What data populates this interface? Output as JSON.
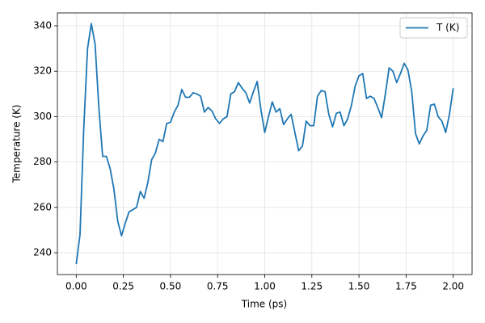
{
  "chart_data": {
    "type": "line",
    "x_label": "Time (ps)",
    "y_label": "Temperature (K)",
    "x": [
      0.0,
      0.02,
      0.04,
      0.06,
      0.08,
      0.1,
      0.12,
      0.14,
      0.16,
      0.18,
      0.2,
      0.22,
      0.24,
      0.26,
      0.28,
      0.3,
      0.32,
      0.34,
      0.36,
      0.38,
      0.4,
      0.42,
      0.44,
      0.46,
      0.48,
      0.5,
      0.52,
      0.54,
      0.56,
      0.58,
      0.6,
      0.62,
      0.64,
      0.66,
      0.68,
      0.7,
      0.72,
      0.74,
      0.76,
      0.78,
      0.8,
      0.82,
      0.84,
      0.86,
      0.88,
      0.9,
      0.92,
      0.94,
      0.96,
      0.98,
      1.0,
      1.02,
      1.04,
      1.06,
      1.08,
      1.1,
      1.12,
      1.14,
      1.16,
      1.18,
      1.2,
      1.22,
      1.24,
      1.26,
      1.28,
      1.3,
      1.32,
      1.34,
      1.36,
      1.38,
      1.4,
      1.42,
      1.44,
      1.46,
      1.48,
      1.5,
      1.52,
      1.54,
      1.56,
      1.58,
      1.6,
      1.62,
      1.64,
      1.66,
      1.68,
      1.7,
      1.72,
      1.74,
      1.76,
      1.78,
      1.8,
      1.82,
      1.84,
      1.86,
      1.88,
      1.9,
      1.92,
      1.94,
      1.96,
      1.98,
      2.0
    ],
    "series": [
      {
        "name": "T (K)",
        "color": "#1f77b4",
        "values": [
          235,
          248,
          295,
          330,
          341,
          332,
          304,
          282.5,
          282.5,
          277,
          268,
          254,
          247.5,
          253,
          258,
          259,
          260,
          267,
          264,
          271,
          281,
          284,
          290,
          289,
          297,
          297.5,
          302,
          305,
          312,
          308.5,
          308.5,
          310.5,
          310,
          309,
          302,
          304,
          302.5,
          299,
          297,
          299,
          300,
          310,
          311,
          315,
          312.5,
          310.5,
          306,
          311,
          315.5,
          303,
          293,
          300,
          306.5,
          302,
          303.5,
          296.5,
          299,
          301,
          293,
          285,
          287,
          298,
          296,
          296,
          309,
          311.5,
          311,
          301,
          295.5,
          301.5,
          302,
          296,
          299,
          305,
          313.5,
          318,
          319,
          308,
          309,
          308,
          304,
          299.5,
          310,
          321.5,
          320,
          315,
          319,
          323.5,
          320.5,
          311,
          292.5,
          288,
          291.5,
          294,
          305,
          305.5,
          300,
          298,
          293,
          301,
          312.5
        ]
      }
    ],
    "xlim": [
      -0.1,
      2.1
    ],
    "ylim": [
      230.4,
      345.7
    ],
    "xticks": [
      {
        "value": 0,
        "label": "0.00"
      },
      {
        "value": 0.25,
        "label": "0.25"
      },
      {
        "value": 0.5,
        "label": "0.50"
      },
      {
        "value": 0.75,
        "label": "0.75"
      },
      {
        "value": 1,
        "label": "1.00"
      },
      {
        "value": 1.25,
        "label": "1.25"
      },
      {
        "value": 1.5,
        "label": "1.50"
      },
      {
        "value": 1.75,
        "label": "1.75"
      },
      {
        "value": 2,
        "label": "2.00"
      }
    ],
    "yticks": [
      240,
      260,
      280,
      300,
      320,
      340
    ],
    "grid": true,
    "legend": "upper right"
  }
}
